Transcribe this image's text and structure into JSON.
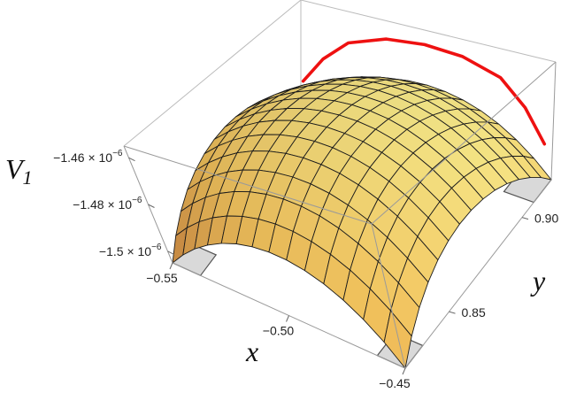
{
  "chart_data": {
    "type": "surface3d",
    "x_axis": {
      "label": "x",
      "range": [
        -0.55,
        -0.45
      ],
      "ticks": [
        {
          "value": -0.55,
          "label": "−0.55"
        },
        {
          "value": -0.5,
          "label": "−0.50"
        },
        {
          "value": -0.45,
          "label": "−0.45"
        }
      ]
    },
    "y_axis": {
      "label": "y",
      "range": [
        0.82,
        0.92
      ],
      "ticks": [
        {
          "value": 0.85,
          "label": "0.85"
        },
        {
          "value": 0.9,
          "label": "0.90"
        }
      ]
    },
    "z_axis": {
      "label": "V",
      "label_subscript": "1",
      "range": [
        -1.505e-06,
        -1.455e-06
      ],
      "ticks": [
        {
          "value": -1.46e-06,
          "mantissa": "−1.46 × 10",
          "exponent": "−6"
        },
        {
          "value": -1.48e-06,
          "mantissa": "−1.48 × 10",
          "exponent": "−6"
        },
        {
          "value": -1.5e-06,
          "mantissa": "−1.5 × 10",
          "exponent": "−6"
        }
      ]
    },
    "surface": {
      "peak_value": -1.458e-06,
      "corner_value": -1.505e-06,
      "mesh_lines": 14,
      "colormap": [
        "#c8753a",
        "#f3c25c",
        "#f7ee8f"
      ]
    },
    "red_curve": {
      "color": "#ee1111",
      "points": [
        [
          -0.548,
          0.918,
          -1.496e-06
        ],
        [
          -0.54,
          0.918,
          -1.481e-06
        ],
        [
          -0.53,
          0.918,
          -1.469e-06
        ],
        [
          -0.515,
          0.918,
          -1.462e-06
        ],
        [
          -0.5,
          0.918,
          -1.46e-06
        ],
        [
          -0.485,
          0.918,
          -1.461e-06
        ],
        [
          -0.47,
          0.918,
          -1.466e-06
        ],
        [
          -0.46,
          0.918,
          -1.476e-06
        ],
        [
          -0.452,
          0.918,
          -1.489e-06
        ]
      ]
    },
    "box": true,
    "grid": false
  }
}
